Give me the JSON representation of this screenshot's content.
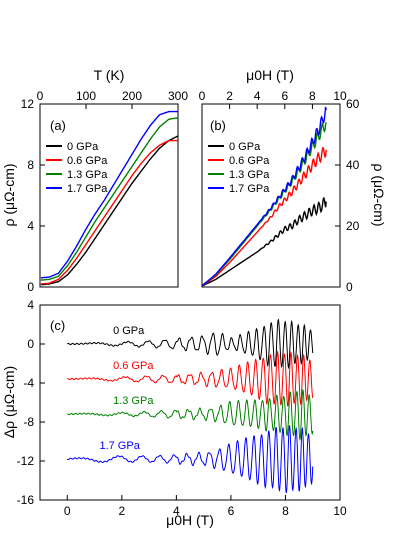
{
  "chart_data": [
    {
      "panel": "(a)",
      "type": "line",
      "xlabel_top": "T (K)",
      "xlim": [
        0,
        300
      ],
      "xticks": [
        "0",
        "100",
        "200",
        "300"
      ],
      "ylabel": "ρ (μΩ-cm)",
      "ylim": [
        0,
        12
      ],
      "yticks": [
        "0",
        "4",
        "8",
        "12"
      ],
      "legend_position": "center-left",
      "series": [
        {
          "name": "0 GPa",
          "color": "#000000",
          "x": [
            2,
            20,
            40,
            60,
            80,
            100,
            120,
            140,
            160,
            180,
            200,
            220,
            240,
            260,
            280,
            300
          ],
          "y": [
            0.15,
            0.2,
            0.35,
            0.8,
            1.5,
            2.3,
            3.2,
            4.1,
            5.0,
            5.9,
            6.8,
            7.6,
            8.4,
            9.1,
            9.6,
            9.9
          ]
        },
        {
          "name": "0.6 GPa",
          "color": "#ff0000",
          "x": [
            2,
            20,
            40,
            60,
            80,
            100,
            120,
            140,
            160,
            180,
            200,
            220,
            240,
            260,
            280,
            300
          ],
          "y": [
            0.2,
            0.25,
            0.5,
            1.1,
            1.9,
            2.8,
            3.7,
            4.6,
            5.5,
            6.4,
            7.3,
            8.1,
            8.8,
            9.3,
            9.6,
            9.6
          ]
        },
        {
          "name": "1.3 GPa",
          "color": "#008000",
          "x": [
            2,
            20,
            40,
            60,
            80,
            100,
            120,
            140,
            160,
            180,
            200,
            220,
            240,
            260,
            280,
            300
          ],
          "y": [
            0.45,
            0.5,
            0.7,
            1.4,
            2.3,
            3.3,
            4.3,
            5.2,
            6.1,
            7.0,
            7.9,
            8.8,
            9.7,
            10.5,
            11.0,
            11.1
          ]
        },
        {
          "name": "1.7 GPa",
          "color": "#0000ff",
          "x": [
            2,
            20,
            40,
            60,
            80,
            100,
            120,
            140,
            160,
            180,
            200,
            220,
            240,
            260,
            280,
            300
          ],
          "y": [
            0.6,
            0.65,
            0.9,
            1.7,
            2.7,
            3.8,
            4.8,
            5.7,
            6.7,
            7.7,
            8.7,
            9.7,
            10.6,
            11.3,
            11.5,
            11.5
          ]
        }
      ]
    },
    {
      "panel": "(b)",
      "type": "line",
      "xlabel_top": "μ0H (T)",
      "xlim": [
        0,
        10
      ],
      "xticks": [
        "0",
        "2",
        "4",
        "6",
        "8",
        "10"
      ],
      "ylabel_right": "ρ (μΩ-cm)",
      "ylim": [
        0,
        60
      ],
      "yticks": [
        "0",
        "20",
        "40",
        "60"
      ],
      "legend_position": "center-left",
      "series": [
        {
          "name": "0 GPa",
          "color": "#000000",
          "x": [
            0,
            1,
            2,
            3,
            4,
            5,
            5.5,
            6,
            6.5,
            7,
            7.5,
            8,
            8.5,
            9
          ],
          "y": [
            0.3,
            2.5,
            5.5,
            8.5,
            11.5,
            15,
            17,
            19,
            20,
            22,
            23.5,
            25,
            26,
            28
          ]
        },
        {
          "name": "0.6 GPa",
          "color": "#ff0000",
          "x": [
            0,
            1,
            2,
            3,
            4,
            5,
            5.5,
            6,
            6.5,
            7,
            7.5,
            8,
            8.5,
            9
          ],
          "y": [
            0.3,
            3.5,
            8,
            13,
            18,
            23,
            26,
            28.5,
            31,
            34,
            37,
            40,
            42.5,
            45
          ]
        },
        {
          "name": "1.3 GPa",
          "color": "#008000",
          "x": [
            0,
            1,
            2,
            3,
            4,
            5,
            5.5,
            6,
            6.5,
            7,
            7.5,
            8,
            8.5,
            9
          ],
          "y": [
            0.4,
            4,
            9,
            14.5,
            20,
            25.5,
            28.5,
            31.5,
            34.5,
            38,
            42,
            46,
            50,
            54
          ]
        },
        {
          "name": "1.7 GPa",
          "color": "#0000ff",
          "x": [
            0,
            1,
            2,
            3,
            4,
            5,
            5.5,
            6,
            6.5,
            7,
            7.5,
            8,
            8.5,
            9
          ],
          "y": [
            0.4,
            4.2,
            9.5,
            15,
            20.5,
            26,
            29,
            32,
            35,
            39,
            43,
            47.5,
            52,
            58
          ]
        }
      ]
    },
    {
      "panel": "(c)",
      "type": "line",
      "xlabel": "μ0H (T)",
      "xlim": [
        -1,
        10
      ],
      "xticks": [
        "0",
        "2",
        "4",
        "6",
        "8",
        "10"
      ],
      "ylabel": "Δρ (μΩ-cm)",
      "ylim": [
        -16,
        4
      ],
      "yticks": [
        "4",
        "0",
        "-4",
        "-8",
        "-12",
        "-16"
      ],
      "series": [
        {
          "name": "0 GPa",
          "color": "#000000",
          "offset": 0,
          "x": [
            0,
            1,
            2,
            3,
            4,
            5,
            5.5,
            6,
            6.5,
            7,
            7.5,
            8,
            8.5,
            9
          ],
          "amplitude": [
            0,
            0.1,
            0.2,
            0.3,
            0.5,
            0.8,
            1.2,
            0.5,
            1.0,
            1.5,
            2.3,
            2.4,
            2.0,
            1.5
          ]
        },
        {
          "name": "0.6 GPa",
          "color": "#ff0000",
          "offset": -3.6,
          "x": [
            0,
            1,
            2,
            3,
            4,
            5,
            5.5,
            6,
            6.5,
            7,
            7.5,
            8,
            8.5,
            9
          ],
          "amplitude": [
            0,
            0.1,
            0.2,
            0.3,
            0.4,
            0.6,
            0.8,
            1.0,
            1.5,
            2.0,
            2.6,
            2.7,
            2.5,
            2.0
          ]
        },
        {
          "name": "1.3 GPa",
          "color": "#008000",
          "offset": -7.2,
          "x": [
            0,
            1,
            2,
            3,
            4,
            5,
            5.5,
            6,
            6.5,
            7,
            7.5,
            8,
            8.5,
            9
          ],
          "amplitude": [
            0,
            0.1,
            0.15,
            0.25,
            0.4,
            0.5,
            0.7,
            1.2,
            1.3,
            1.4,
            1.7,
            2.0,
            2.5,
            2.0
          ]
        },
        {
          "name": "1.7 GPa",
          "color": "#0000ff",
          "offset": -11.8,
          "x": [
            0,
            1,
            2,
            3,
            4,
            5,
            5.5,
            6,
            6.5,
            7,
            7.5,
            8,
            8.5,
            9
          ],
          "amplitude": [
            0,
            0.3,
            0.3,
            0.3,
            0.4,
            0.6,
            0.9,
            1.5,
            2.0,
            2.5,
            3.0,
            3.4,
            3.2,
            2.5
          ]
        }
      ]
    }
  ]
}
